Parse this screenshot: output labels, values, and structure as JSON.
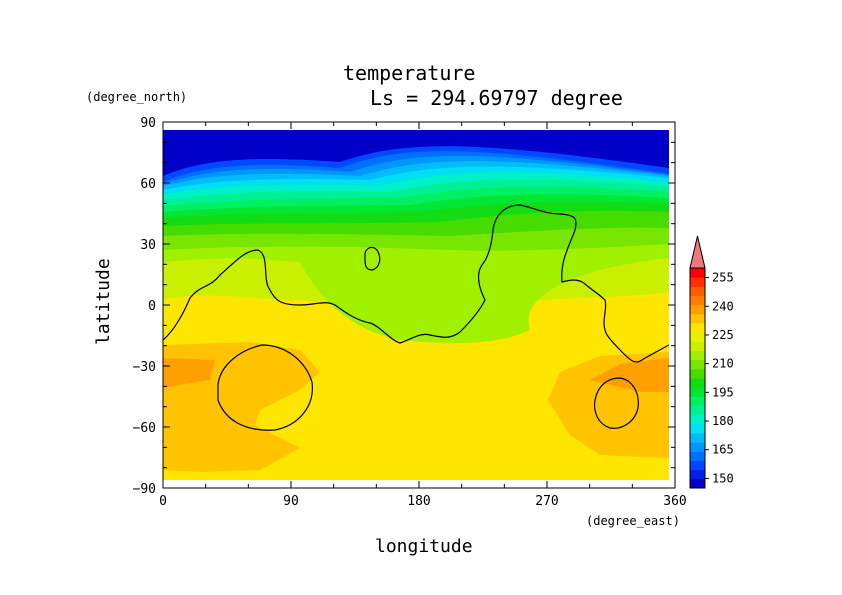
{
  "chart_data": {
    "type": "heatmap",
    "title": "temperature",
    "subtitle": "Ls = 294.69797 degree",
    "xlabel": "longitude",
    "ylabel": "latitude",
    "x_unit": "(degree_east)",
    "y_unit": "(degree_north)",
    "xlim": [
      0,
      360
    ],
    "ylim": [
      -90,
      90
    ],
    "data_lat_range": [
      -87,
      85
    ],
    "x_ticks": [
      "0",
      "90",
      "180",
      "270",
      "360"
    ],
    "y_ticks": [
      "90",
      "60",
      "30",
      "0",
      "−30",
      "−60",
      "−90"
    ],
    "colorbar": {
      "labels": [
        "150",
        "165",
        "180",
        "195",
        "210",
        "225",
        "240",
        "255"
      ],
      "levels": [
        145,
        150,
        155,
        160,
        165,
        170,
        175,
        180,
        185,
        190,
        195,
        200,
        205,
        210,
        215,
        220,
        225,
        230,
        235,
        240,
        245,
        250,
        255,
        260
      ],
      "colors": [
        "#0000c8",
        "#0020e6",
        "#0048ff",
        "#0070ff",
        "#0096ff",
        "#00bcff",
        "#00e0f0",
        "#00f0c8",
        "#00f096",
        "#00f064",
        "#00e632",
        "#14dc14",
        "#46dc00",
        "#78e600",
        "#a0f000",
        "#c8f000",
        "#e6f000",
        "#ffe600",
        "#ffc300",
        "#ffa000",
        "#ff7d00",
        "#ff5a00",
        "#ff3000",
        "#ff0000"
      ],
      "extend_color": "#f07878"
    },
    "temperature_description_by_latitude": [
      {
        "lat": 85,
        "temp": 150
      },
      {
        "lat": 60,
        "temp": 165
      },
      {
        "lat": 50,
        "temp": 185
      },
      {
        "lat": 40,
        "temp": 200
      },
      {
        "lat": 30,
        "temp": 210
      },
      {
        "lat": 15,
        "temp": 216
      },
      {
        "lat": 0,
        "temp": 222
      },
      {
        "lat": -20,
        "temp": 226
      },
      {
        "lat": -40,
        "temp": 230
      },
      {
        "lat": -60,
        "temp": 228
      },
      {
        "lat": -85,
        "temp": 226
      }
    ],
    "topography_contour": "single black contour outline of highlands (continental boundary)",
    "grid": false
  }
}
